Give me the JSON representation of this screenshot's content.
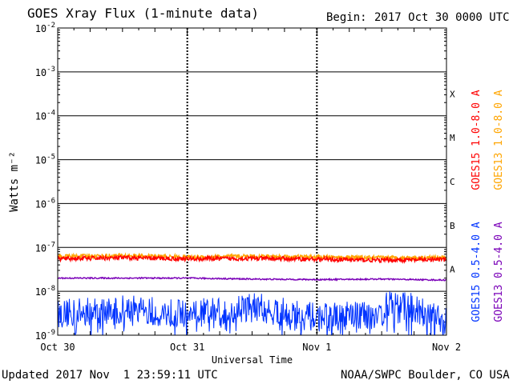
{
  "header": {
    "title": "GOES Xray Flux (1-minute data)",
    "begin_label": "Begin:",
    "begin_value": "2017 Oct 30 0000 UTC"
  },
  "footer": {
    "updated": "Updated 2017 Nov  1 23:59:11 UTC",
    "credit": "NOAA/SWPC Boulder, CO USA"
  },
  "colors": {
    "goes15_long": "#ff0000",
    "goes13_long": "#ffa500",
    "goes15_short": "#0033ff",
    "goes13_short": "#7a00b8",
    "axes": "#000000"
  },
  "chart_data": {
    "type": "line",
    "title": "GOES Xray Flux (1-minute data)",
    "xlabel": "Universal Time",
    "ylabel": "Watts m⁻²",
    "x_ticks": [
      "Oct 30",
      "Oct 31",
      "Nov 1",
      "Nov 2"
    ],
    "xlim": [
      "2017-10-30 00:00",
      "2017-11-02 00:00"
    ],
    "y_scale": "log",
    "ylim": [
      1e-09,
      0.01
    ],
    "y_ticks": [
      {
        "base": "10",
        "exp": "-9",
        "value": 1e-09
      },
      {
        "base": "10",
        "exp": "-8",
        "value": 1e-08
      },
      {
        "base": "10",
        "exp": "-7",
        "value": 1e-07
      },
      {
        "base": "10",
        "exp": "-6",
        "value": 1e-06
      },
      {
        "base": "10",
        "exp": "-5",
        "value": 1e-05
      },
      {
        "base": "10",
        "exp": "-4",
        "value": 0.0001
      },
      {
        "base": "10",
        "exp": "-3",
        "value": 0.001
      },
      {
        "base": "10",
        "exp": "-2",
        "value": 0.01
      }
    ],
    "flare_classes": [
      {
        "label": "A",
        "value": 1e-08
      },
      {
        "label": "B",
        "value": 1e-07
      },
      {
        "label": "C",
        "value": 1e-06
      },
      {
        "label": "M",
        "value": 1e-05
      },
      {
        "label": "X",
        "value": 0.0001
      }
    ],
    "grid": true,
    "legend": "right side, vertical text",
    "series": [
      {
        "name": "GOES15 1.0-8.0 A",
        "color": "#ff0000",
        "approx_level": 5.5e-08,
        "x": [
          "2017-10-30 00:00",
          "2017-10-30 12:00",
          "2017-10-31 00:00",
          "2017-10-31 12:00",
          "2017-11-01 00:00",
          "2017-11-01 12:00",
          "2017-11-02 00:00"
        ],
        "values": [
          5.5e-08,
          5.8e-08,
          5.5e-08,
          5.6e-08,
          5.4e-08,
          5.1e-08,
          5.3e-08
        ]
      },
      {
        "name": "GOES13 1.0-8.0 A",
        "color": "#ffa500",
        "approx_level": 6e-08,
        "x": [
          "2017-10-30 00:00",
          "2017-10-30 12:00",
          "2017-10-31 00:00",
          "2017-10-31 12:00",
          "2017-11-01 00:00",
          "2017-11-01 12:00",
          "2017-11-02 00:00"
        ],
        "values": [
          6.2e-08,
          6.5e-08,
          6e-08,
          6.3e-08,
          6e-08,
          5.8e-08,
          5.9e-08
        ]
      },
      {
        "name": "GOES15 0.5-4.0 A",
        "color": "#0033ff",
        "approx_level": 3e-09,
        "x": [
          "2017-10-30 00:00",
          "2017-10-30 12:00",
          "2017-10-31 00:00",
          "2017-10-31 12:00",
          "2017-11-01 00:00",
          "2017-11-01 12:00",
          "2017-11-01 14:00",
          "2017-11-02 00:00"
        ],
        "values": [
          3e-09,
          4e-09,
          3e-09,
          4.5e-09,
          2.5e-09,
          3e-09,
          7e-09,
          2e-09
        ]
      },
      {
        "name": "GOES13 0.5-4.0 A",
        "color": "#7a00b8",
        "approx_level": 1.9e-08,
        "x": [
          "2017-10-30 00:00",
          "2017-10-30 12:00",
          "2017-10-31 00:00",
          "2017-10-31 12:00",
          "2017-11-01 00:00",
          "2017-11-01 12:00",
          "2017-11-02 00:00"
        ],
        "values": [
          2e-08,
          2e-08,
          2e-08,
          1.9e-08,
          1.85e-08,
          1.9e-08,
          1.8e-08
        ]
      }
    ]
  }
}
